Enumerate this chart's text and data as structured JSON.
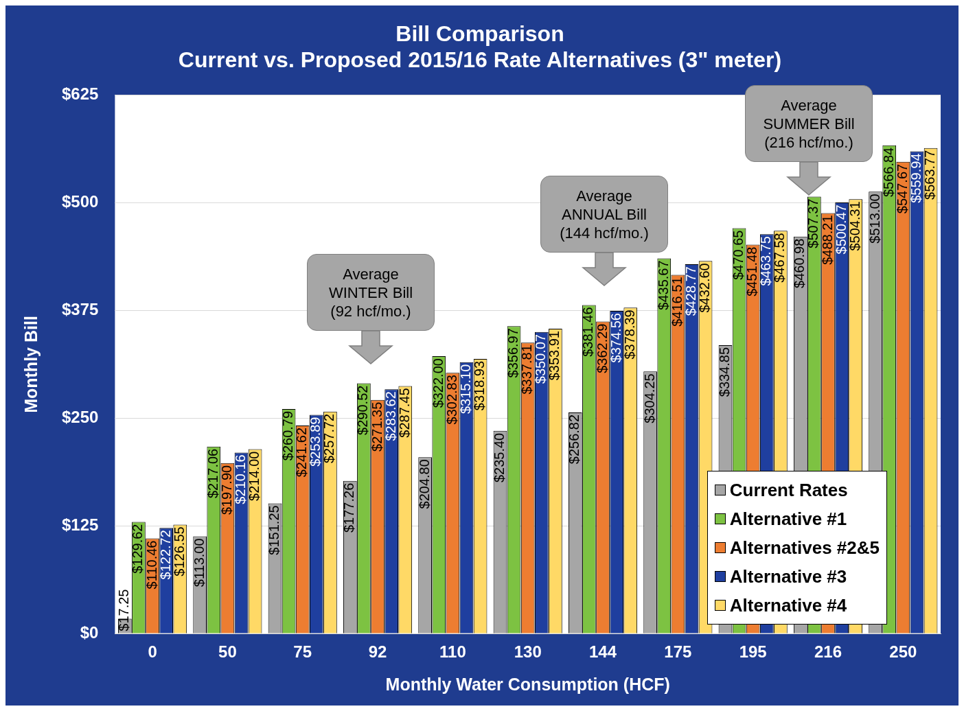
{
  "chart_data": {
    "type": "bar",
    "title": "Bill Comparison\nCurrent vs. Proposed 2015/16 Rate Alternatives (3\" meter)",
    "xlabel": "Monthly Water Consumption (HCF)",
    "ylabel": "Monthly Bill",
    "categories": [
      "0",
      "50",
      "75",
      "92",
      "110",
      "130",
      "144",
      "175",
      "195",
      "216",
      "250"
    ],
    "ylim": [
      0,
      625
    ],
    "yticks": [
      {
        "value": 0,
        "label": "$0"
      },
      {
        "value": 125,
        "label": "$125"
      },
      {
        "value": 250,
        "label": "$250"
      },
      {
        "value": 375,
        "label": "$375"
      },
      {
        "value": 500,
        "label": "$500"
      },
      {
        "value": 625,
        "label": "$625"
      }
    ],
    "grid": "y",
    "legend": "bottom right",
    "series": [
      {
        "name": "Current Rates",
        "color": "#a6a6a6",
        "values": [
          17.25,
          113.0,
          151.25,
          177.26,
          204.8,
          235.4,
          256.82,
          304.25,
          334.85,
          460.98,
          513.0
        ],
        "value_labels": [
          "$17.25",
          "$113.00",
          "$151.25",
          "$177.26",
          "$204.80",
          "$235.40",
          "$256.82",
          "$304.25",
          "$334.85",
          "$460.98",
          "$513.00"
        ]
      },
      {
        "name": "Alternative #1",
        "color": "#7dc242",
        "values": [
          129.62,
          217.06,
          260.79,
          290.52,
          322.0,
          356.97,
          381.46,
          435.67,
          470.65,
          507.37,
          566.84
        ],
        "value_labels": [
          "$129.62",
          "$217.06",
          "$260.79",
          "$290.52",
          "$322.00",
          "$356.97",
          "$381.46",
          "$435.67",
          "$470.65",
          "$507.37",
          "$566.84"
        ]
      },
      {
        "name": "Alternatives #2&5",
        "color": "#ed7d31",
        "values": [
          110.46,
          197.9,
          241.62,
          271.35,
          302.83,
          337.81,
          362.29,
          416.51,
          451.48,
          488.21,
          547.67
        ],
        "value_labels": [
          "$110.46",
          "$197.90",
          "$241.62",
          "$271.35",
          "$302.83",
          "$337.81",
          "$362.29",
          "$416.51",
          "$451.48",
          "$488.21",
          "$547.67"
        ]
      },
      {
        "name": "Alternative #3",
        "color": "#1f3f9f",
        "values": [
          122.72,
          210.16,
          253.89,
          283.62,
          315.1,
          350.07,
          374.56,
          428.77,
          463.75,
          500.47,
          559.94
        ],
        "value_labels": [
          "$122.72",
          "$210.16",
          "$253.89",
          "$283.62",
          "$315.10",
          "$350.07",
          "$374.56",
          "$428.77",
          "$463.75",
          "$500.47",
          "$559.94"
        ]
      },
      {
        "name": "Alternative #4",
        "color": "#ffd966",
        "values": [
          126.55,
          214.0,
          257.72,
          287.45,
          318.93,
          353.91,
          378.39,
          432.6,
          467.58,
          504.31,
          563.77
        ],
        "value_labels": [
          "$126.55",
          "$214.00",
          "$257.72",
          "$287.45",
          "$318.93",
          "$353.91",
          "$378.39",
          "$432.60",
          "$467.58",
          "$504.31",
          "$563.77"
        ]
      }
    ],
    "annotations": [
      "Average\nWINTER Bill\n(92 hcf/mo.)",
      "Average\nANNUAL Bill\n(144 hcf/mo.)",
      "Average\nSUMMER Bill\n(216 hcf/mo.)"
    ]
  }
}
